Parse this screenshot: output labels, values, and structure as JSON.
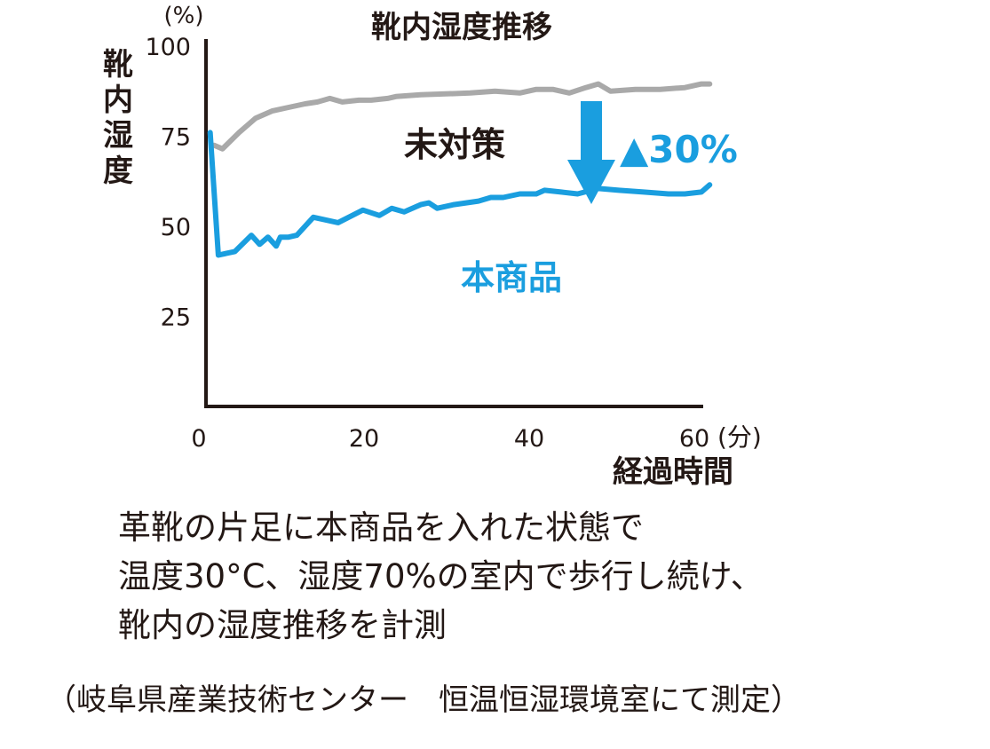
{
  "chart_data": {
    "type": "line",
    "title": "靴内湿度推移",
    "ylabel": "靴内湿度",
    "y_unit": "(%)",
    "xlabel": "経過時間",
    "x_unit": "(分)",
    "xlim": [
      0,
      60
    ],
    "ylim": [
      0,
      100
    ],
    "x_ticks": [
      "0",
      "20",
      "40",
      "60"
    ],
    "y_ticks": [
      "25",
      "50",
      "75",
      "100"
    ],
    "x_tick_values": [
      0,
      20,
      40,
      60
    ],
    "y_tick_values": [
      25,
      50,
      75,
      100
    ],
    "grid": false,
    "series": [
      {
        "name": "未対策",
        "color": "#a9a9a9",
        "x": [
          1,
          2,
          4,
          6,
          8,
          10,
          12,
          13.5,
          15,
          16.5,
          18.5,
          20,
          22,
          23,
          26,
          32,
          35,
          38,
          40,
          42,
          44,
          46,
          47.5,
          49,
          52,
          55,
          58,
          60,
          61
        ],
        "y": [
          72.5,
          71.5,
          76,
          80,
          82,
          83,
          84,
          84.5,
          85.5,
          84.5,
          85,
          85,
          85.5,
          86,
          86.5,
          87,
          87.5,
          87,
          88,
          88,
          87,
          88.5,
          89.5,
          87.5,
          88,
          88,
          88.5,
          89.5,
          89.5
        ]
      },
      {
        "name": "本商品",
        "color": "#1a9edf",
        "x": [
          0.5,
          1.5,
          3.5,
          5.5,
          6.5,
          7.5,
          8.5,
          9,
          10,
          11,
          13,
          16,
          19,
          21,
          22.5,
          24,
          26,
          27,
          28,
          30,
          33,
          34.5,
          36,
          38,
          40,
          41,
          43,
          45,
          47.5,
          50,
          53,
          56,
          58,
          60,
          61
        ],
        "y": [
          76,
          42,
          43,
          47.5,
          45,
          47,
          44.5,
          47,
          47,
          47.5,
          52.5,
          51,
          54.5,
          53,
          55,
          54,
          56,
          56.5,
          55,
          56,
          57,
          58,
          58,
          59,
          59,
          60,
          59.5,
          59,
          60.5,
          60,
          59.5,
          59,
          59,
          59.5,
          61.5
        ]
      }
    ],
    "annotations": {
      "untreated_label": "未対策",
      "product_label": "本商品",
      "reduction_label": "▲30%"
    }
  },
  "note_lines": [
    "革靴の片足に本商品を入れた状態で",
    "温度30°C、湿度70%の室内で歩行し続け、",
    "靴内の湿度推移を計測"
  ],
  "source": "（岐阜県産業技術センター　恒温恒湿環境室にて測定）",
  "colors": {
    "text": "#231815",
    "axis": "#231815",
    "untreated": "#a9a9a9",
    "product": "#1a9edf"
  }
}
